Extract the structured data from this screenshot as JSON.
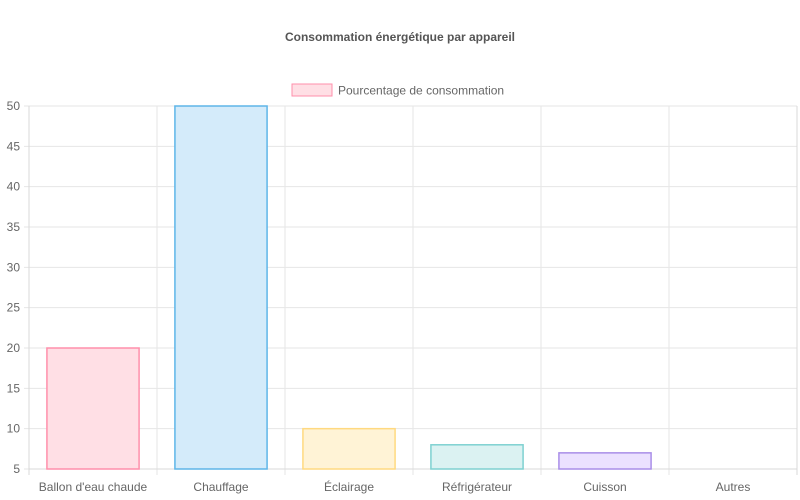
{
  "chart_data": {
    "type": "bar",
    "title": "Consommation énergétique par appareil",
    "categories": [
      "Ballon d'eau chaude",
      "Chauffage",
      "Éclairage",
      "Réfrigérateur",
      "Cuisson",
      "Autres"
    ],
    "series": [
      {
        "name": "Pourcentage de consommation",
        "values": [
          20,
          50,
          10,
          8,
          7,
          5
        ],
        "fill_colors": [
          "#ffdfe5",
          "#d4ebfa",
          "#fff3d6",
          "#dbf2f2",
          "#ebe1ff",
          "#f4f5f5"
        ],
        "border_colors": [
          "#ff8fab",
          "#5eb5e8",
          "#ffd980",
          "#7ed1d1",
          "#a98ee8",
          "#c9cbcf"
        ]
      }
    ],
    "ylim": [
      5,
      50
    ],
    "yticks": [
      5,
      10,
      15,
      20,
      25,
      30,
      35,
      40,
      45,
      50
    ],
    "grid": true,
    "legend_position": "top",
    "xlabel": "",
    "ylabel": ""
  }
}
